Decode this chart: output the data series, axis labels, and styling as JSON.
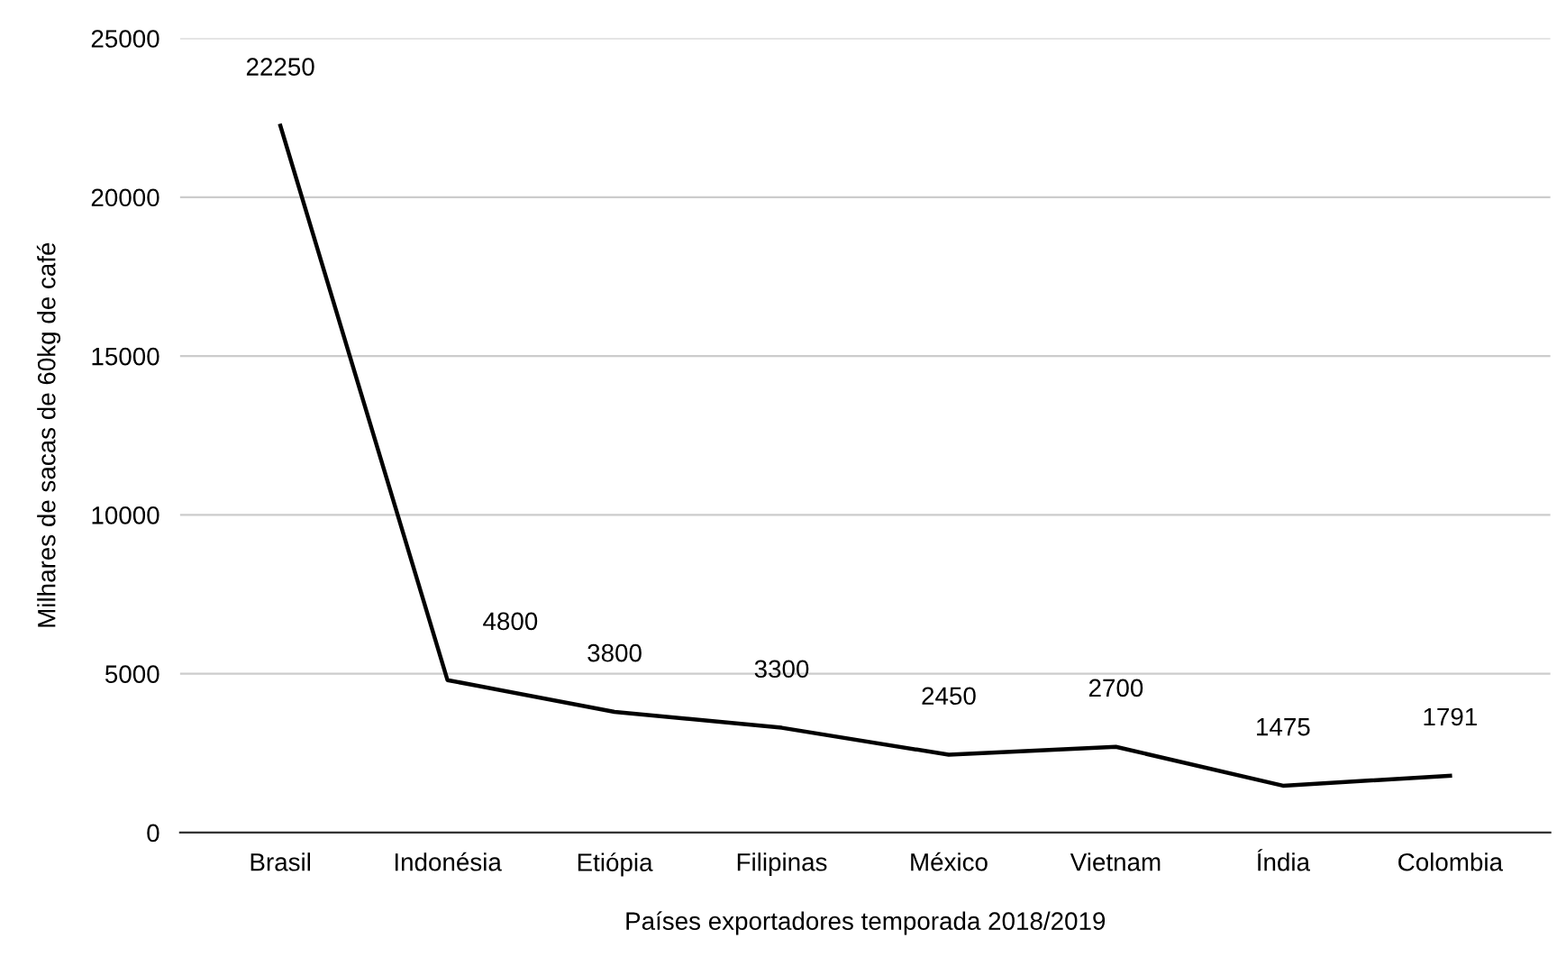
{
  "chart_data": {
    "type": "line",
    "xlabel": "Países exportadores temporada 2018/2019",
    "ylabel": "Milhares de sacas de 60kg de café",
    "categories": [
      "Brasil",
      "Indonésia",
      "Etiópia",
      "Filipinas",
      "México",
      "Vietnam",
      "Índia",
      "Colombia"
    ],
    "series": [
      {
        "color": "#000000",
        "values": [
          22250,
          4800,
          3800,
          3300,
          2450,
          2700,
          1475,
          1791
        ]
      }
    ],
    "ylim": [
      0,
      25000
    ],
    "yticks": [
      0,
      5000,
      10000,
      15000,
      20000,
      25000
    ],
    "grid": "y",
    "data_labels": true,
    "marker": "none",
    "line_style": "solid",
    "legend": false
  }
}
